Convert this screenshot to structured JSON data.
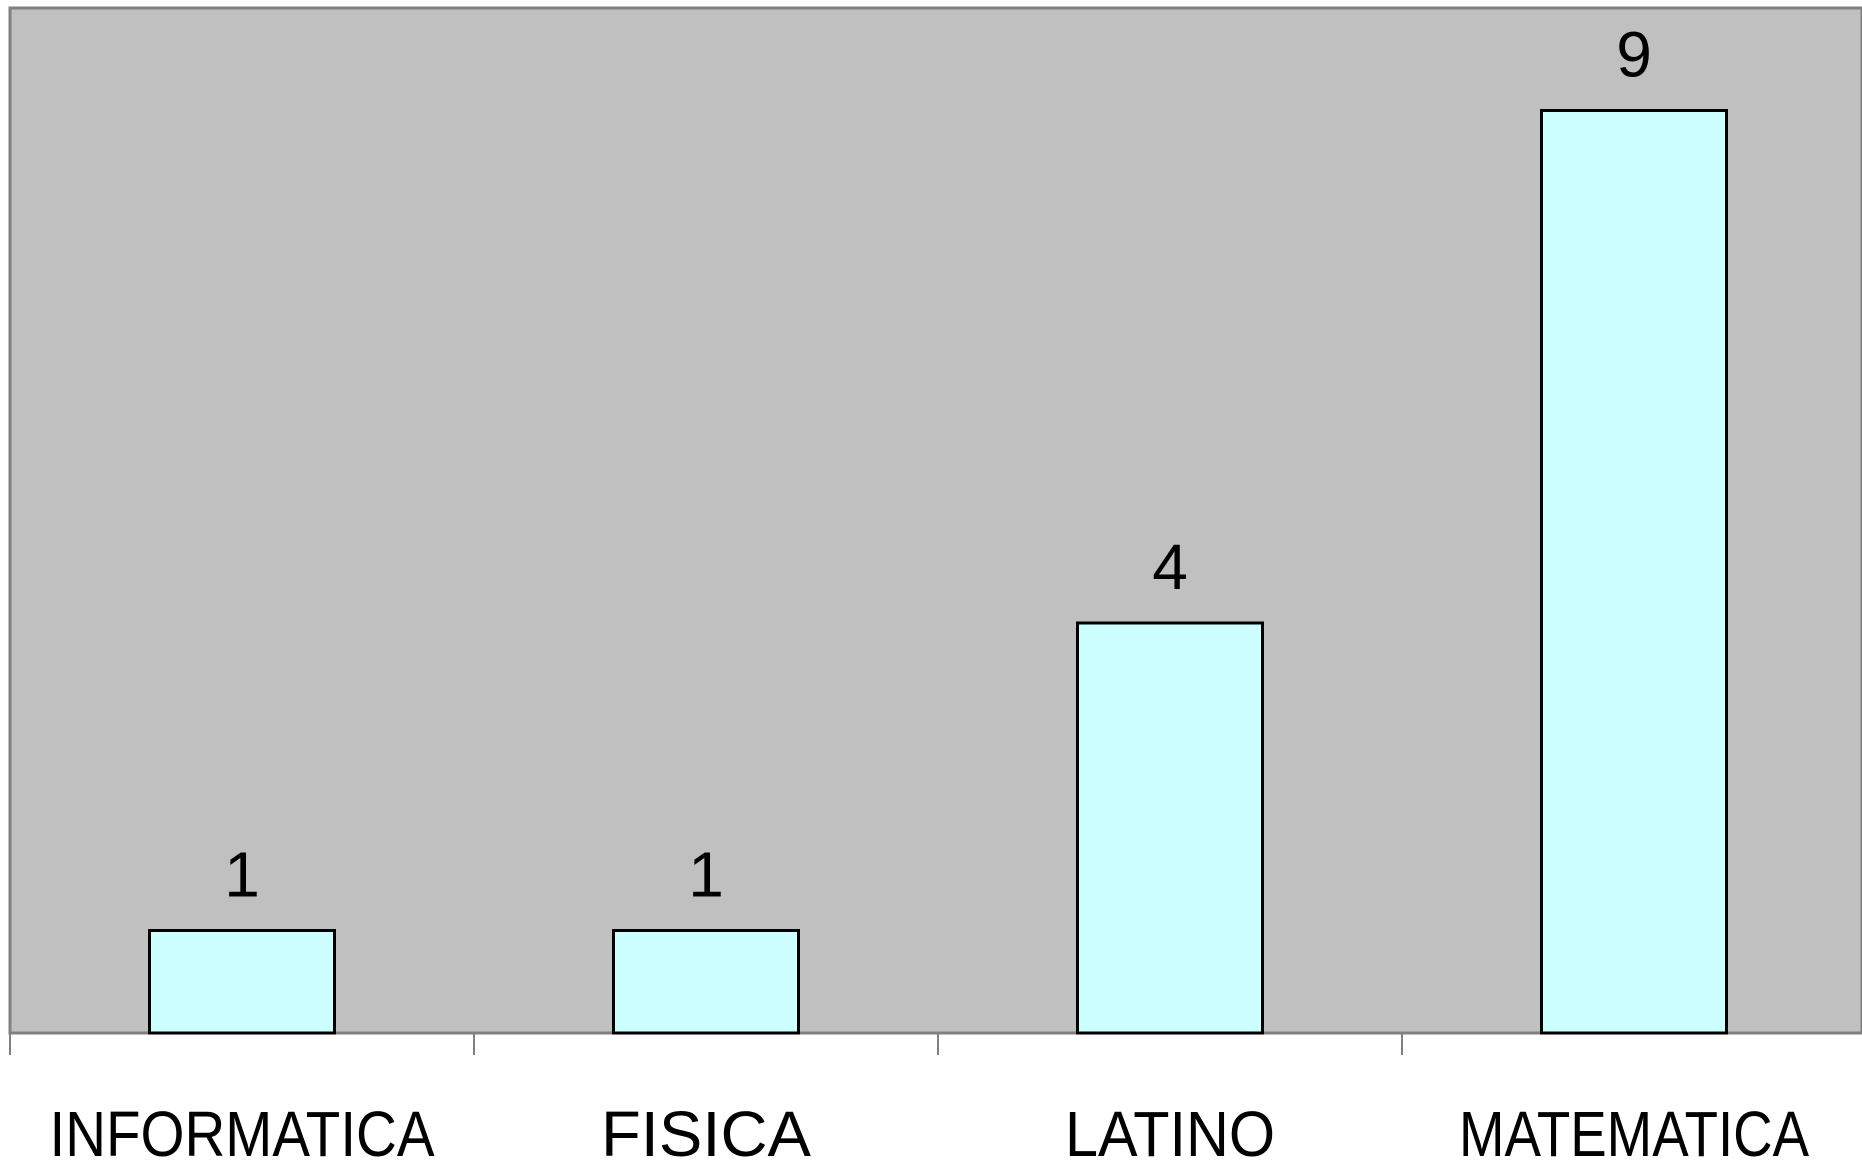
{
  "chart_data": {
    "type": "bar",
    "title": "",
    "xlabel": "",
    "ylabel": "",
    "categories": [
      "INFORMATICA",
      "FISICA",
      "LATINO",
      "MATEMATICA"
    ],
    "values": [
      1,
      1,
      4,
      9
    ],
    "data_labels": [
      "1",
      "1",
      "4",
      "9"
    ],
    "ylim": [
      0,
      10
    ],
    "grid": false,
    "legend": "none",
    "colors": {
      "plot_background": "#c0c0c0",
      "bar_fill": "#ccffff",
      "bar_stroke": "#000000",
      "axis": "#808080"
    }
  }
}
